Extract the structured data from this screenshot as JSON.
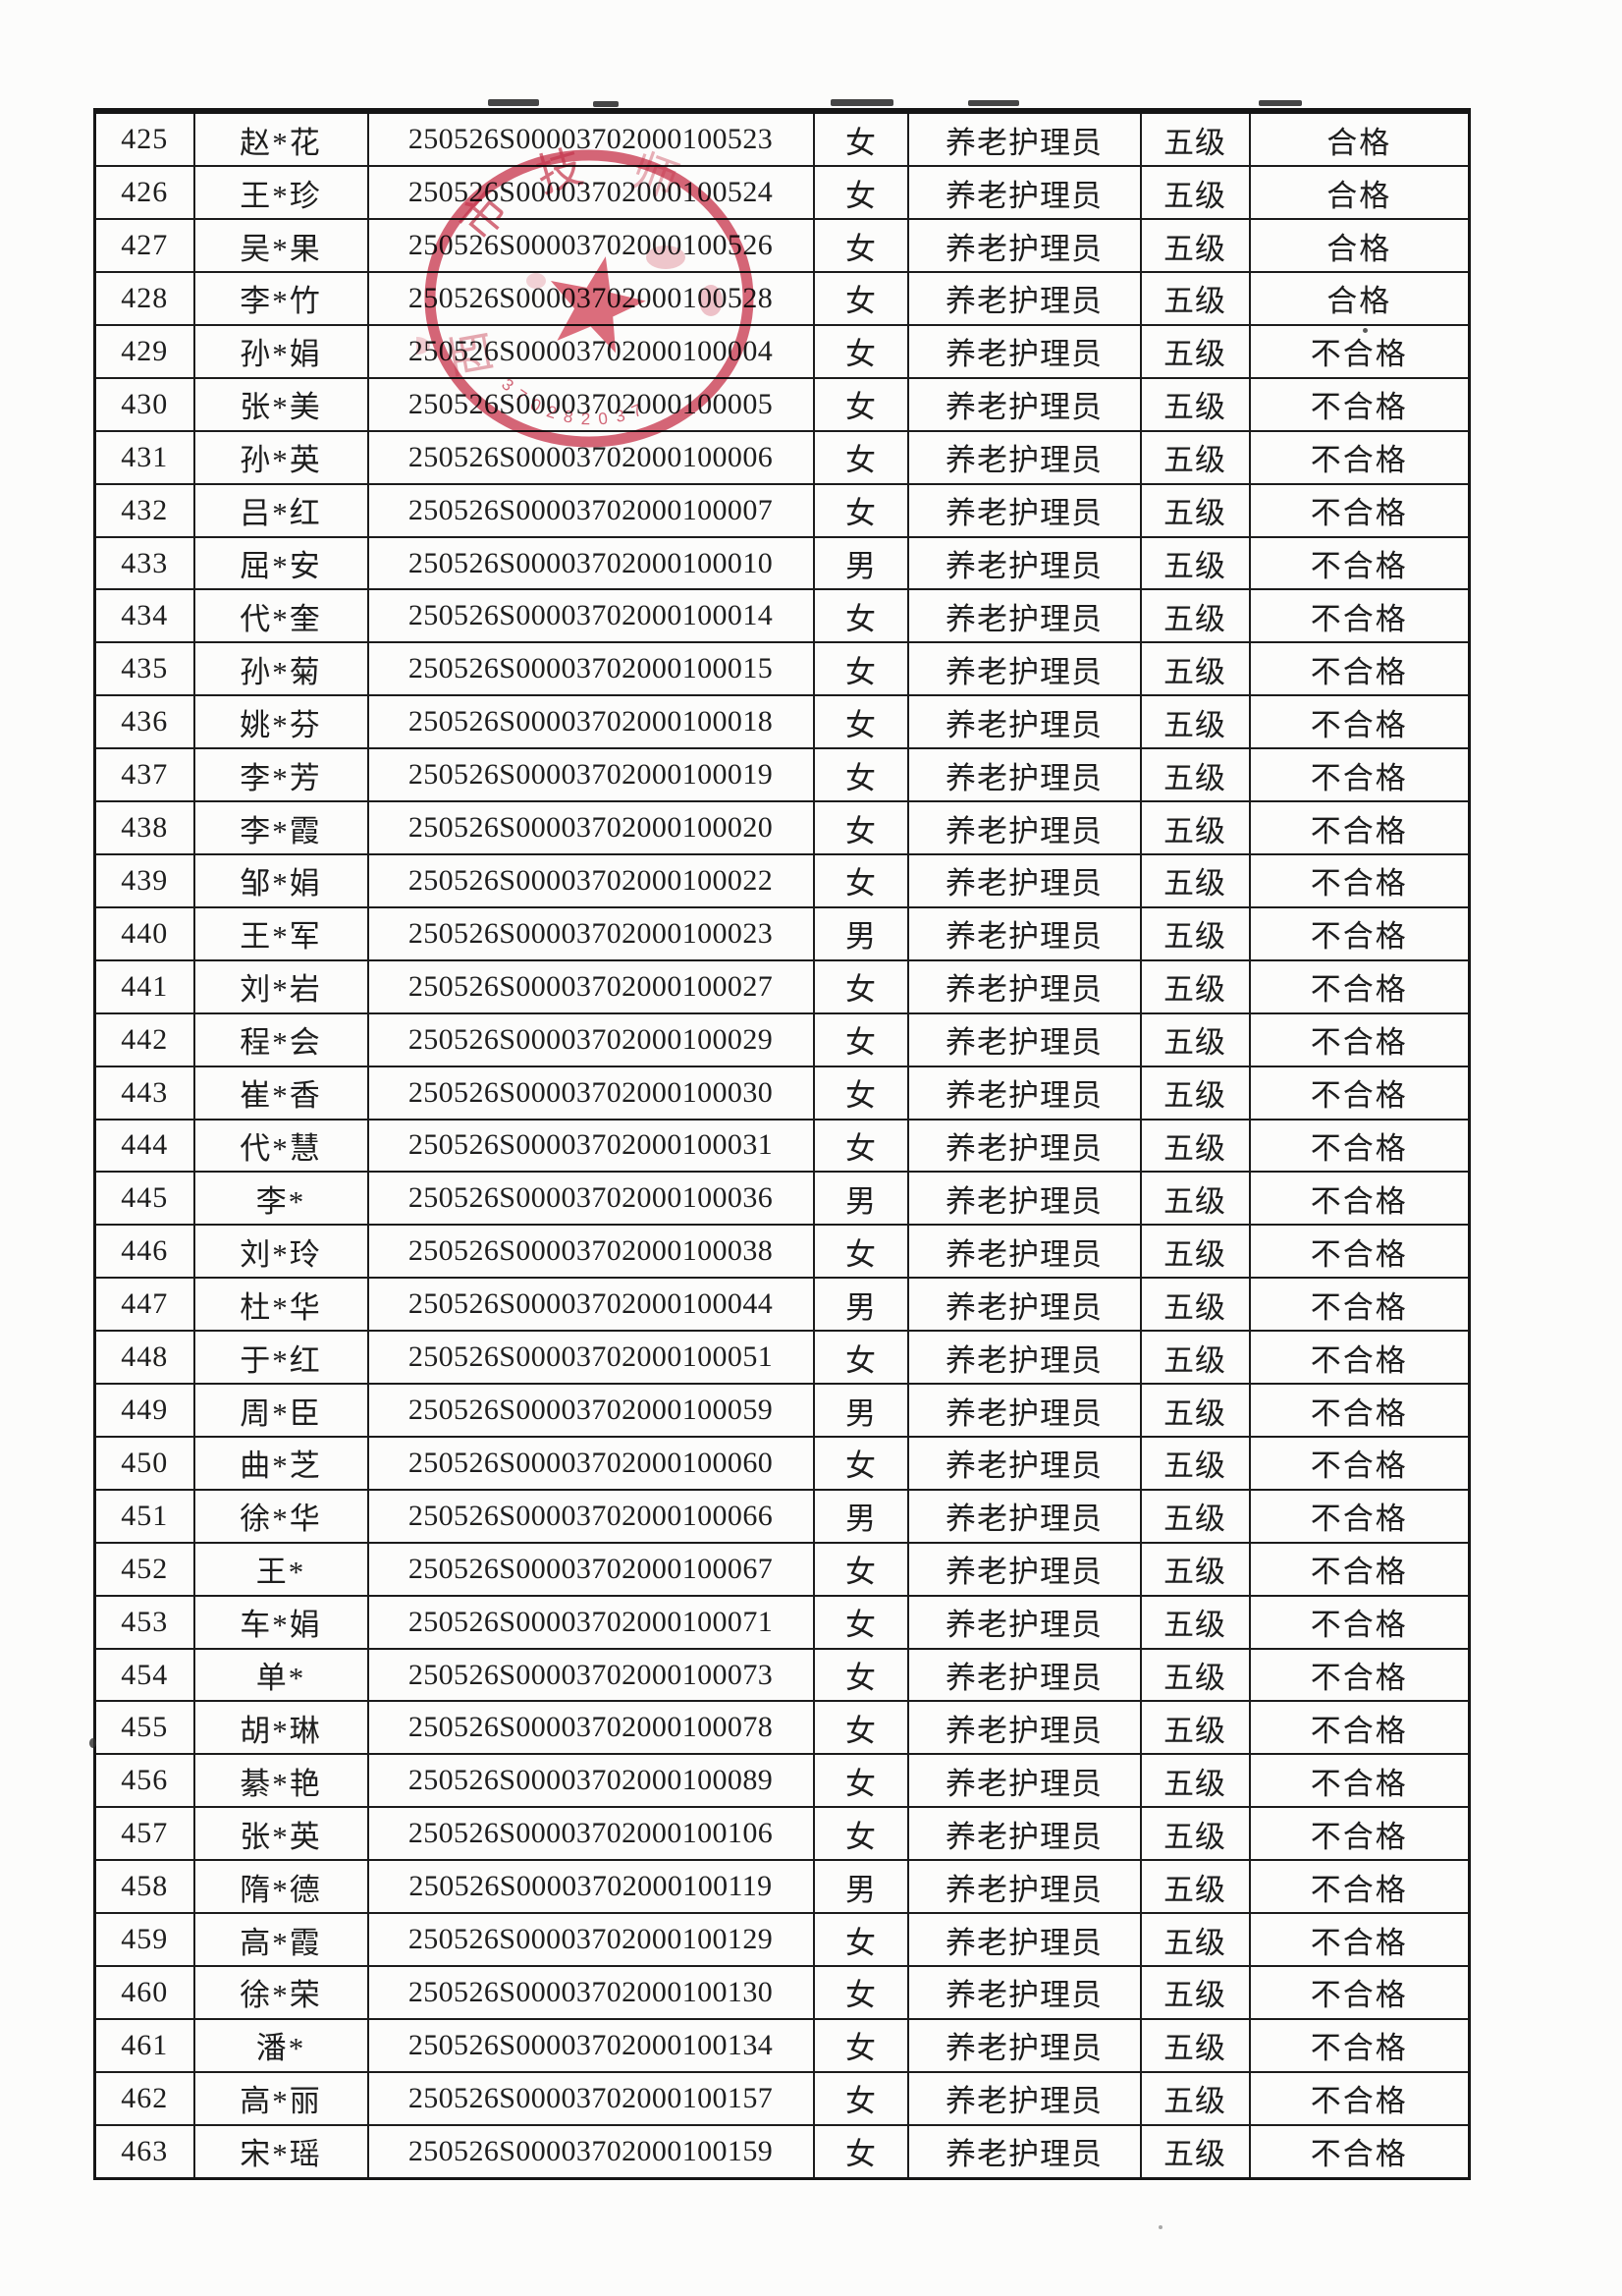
{
  "colors": {
    "ink": "#1e1e1e",
    "table_border": "#1c1c1c",
    "seal_red": "#c83b52",
    "paper": "#fcfcfb"
  },
  "stamp": {
    "kind": "official-red-circular-seal",
    "arc_chars": [
      "市",
      "技",
      "师",
      "西"
    ],
    "serial_digits": "370282037",
    "center_symbol": "five-pointed-star"
  },
  "table": {
    "rows": [
      {
        "no": "425",
        "name": "赵*花",
        "id": "250526S00003702000100523",
        "gender": "女",
        "occupation": "养老护理员",
        "level": "五级",
        "result": "合格"
      },
      {
        "no": "426",
        "name": "王*珍",
        "id": "250526S00003702000100524",
        "gender": "女",
        "occupation": "养老护理员",
        "level": "五级",
        "result": "合格"
      },
      {
        "no": "427",
        "name": "吴*果",
        "id": "250526S00003702000100526",
        "gender": "女",
        "occupation": "养老护理员",
        "level": "五级",
        "result": "合格"
      },
      {
        "no": "428",
        "name": "李*竹",
        "id": "250526S00003702000100528",
        "gender": "女",
        "occupation": "养老护理员",
        "level": "五级",
        "result": "合格"
      },
      {
        "no": "429",
        "name": "孙*娟",
        "id": "250526S00003702000100004",
        "gender": "女",
        "occupation": "养老护理员",
        "level": "五级",
        "result": "不合格"
      },
      {
        "no": "430",
        "name": "张*美",
        "id": "250526S00003702000100005",
        "gender": "女",
        "occupation": "养老护理员",
        "level": "五级",
        "result": "不合格"
      },
      {
        "no": "431",
        "name": "孙*英",
        "id": "250526S00003702000100006",
        "gender": "女",
        "occupation": "养老护理员",
        "level": "五级",
        "result": "不合格"
      },
      {
        "no": "432",
        "name": "吕*红",
        "id": "250526S00003702000100007",
        "gender": "女",
        "occupation": "养老护理员",
        "level": "五级",
        "result": "不合格"
      },
      {
        "no": "433",
        "name": "屈*安",
        "id": "250526S00003702000100010",
        "gender": "男",
        "occupation": "养老护理员",
        "level": "五级",
        "result": "不合格"
      },
      {
        "no": "434",
        "name": "代*奎",
        "id": "250526S00003702000100014",
        "gender": "女",
        "occupation": "养老护理员",
        "level": "五级",
        "result": "不合格"
      },
      {
        "no": "435",
        "name": "孙*菊",
        "id": "250526S00003702000100015",
        "gender": "女",
        "occupation": "养老护理员",
        "level": "五级",
        "result": "不合格"
      },
      {
        "no": "436",
        "name": "姚*芬",
        "id": "250526S00003702000100018",
        "gender": "女",
        "occupation": "养老护理员",
        "level": "五级",
        "result": "不合格"
      },
      {
        "no": "437",
        "name": "李*芳",
        "id": "250526S00003702000100019",
        "gender": "女",
        "occupation": "养老护理员",
        "level": "五级",
        "result": "不合格"
      },
      {
        "no": "438",
        "name": "李*霞",
        "id": "250526S00003702000100020",
        "gender": "女",
        "occupation": "养老护理员",
        "level": "五级",
        "result": "不合格"
      },
      {
        "no": "439",
        "name": "邹*娟",
        "id": "250526S00003702000100022",
        "gender": "女",
        "occupation": "养老护理员",
        "level": "五级",
        "result": "不合格"
      },
      {
        "no": "440",
        "name": "王*军",
        "id": "250526S00003702000100023",
        "gender": "男",
        "occupation": "养老护理员",
        "level": "五级",
        "result": "不合格"
      },
      {
        "no": "441",
        "name": "刘*岩",
        "id": "250526S00003702000100027",
        "gender": "女",
        "occupation": "养老护理员",
        "level": "五级",
        "result": "不合格"
      },
      {
        "no": "442",
        "name": "程*会",
        "id": "250526S00003702000100029",
        "gender": "女",
        "occupation": "养老护理员",
        "level": "五级",
        "result": "不合格"
      },
      {
        "no": "443",
        "name": "崔*香",
        "id": "250526S00003702000100030",
        "gender": "女",
        "occupation": "养老护理员",
        "level": "五级",
        "result": "不合格"
      },
      {
        "no": "444",
        "name": "代*慧",
        "id": "250526S00003702000100031",
        "gender": "女",
        "occupation": "养老护理员",
        "level": "五级",
        "result": "不合格"
      },
      {
        "no": "445",
        "name": "李*",
        "id": "250526S00003702000100036",
        "gender": "男",
        "occupation": "养老护理员",
        "level": "五级",
        "result": "不合格"
      },
      {
        "no": "446",
        "name": "刘*玲",
        "id": "250526S00003702000100038",
        "gender": "女",
        "occupation": "养老护理员",
        "level": "五级",
        "result": "不合格"
      },
      {
        "no": "447",
        "name": "杜*华",
        "id": "250526S00003702000100044",
        "gender": "男",
        "occupation": "养老护理员",
        "level": "五级",
        "result": "不合格"
      },
      {
        "no": "448",
        "name": "于*红",
        "id": "250526S00003702000100051",
        "gender": "女",
        "occupation": "养老护理员",
        "level": "五级",
        "result": "不合格"
      },
      {
        "no": "449",
        "name": "周*臣",
        "id": "250526S00003702000100059",
        "gender": "男",
        "occupation": "养老护理员",
        "level": "五级",
        "result": "不合格"
      },
      {
        "no": "450",
        "name": "曲*芝",
        "id": "250526S00003702000100060",
        "gender": "女",
        "occupation": "养老护理员",
        "level": "五级",
        "result": "不合格"
      },
      {
        "no": "451",
        "name": "徐*华",
        "id": "250526S00003702000100066",
        "gender": "男",
        "occupation": "养老护理员",
        "level": "五级",
        "result": "不合格"
      },
      {
        "no": "452",
        "name": "王*",
        "id": "250526S00003702000100067",
        "gender": "女",
        "occupation": "养老护理员",
        "level": "五级",
        "result": "不合格"
      },
      {
        "no": "453",
        "name": "车*娟",
        "id": "250526S00003702000100071",
        "gender": "女",
        "occupation": "养老护理员",
        "level": "五级",
        "result": "不合格"
      },
      {
        "no": "454",
        "name": "单*",
        "id": "250526S00003702000100073",
        "gender": "女",
        "occupation": "养老护理员",
        "level": "五级",
        "result": "不合格"
      },
      {
        "no": "455",
        "name": "胡*琳",
        "id": "250526S00003702000100078",
        "gender": "女",
        "occupation": "养老护理员",
        "level": "五级",
        "result": "不合格"
      },
      {
        "no": "456",
        "name": "綦*艳",
        "id": "250526S00003702000100089",
        "gender": "女",
        "occupation": "养老护理员",
        "level": "五级",
        "result": "不合格"
      },
      {
        "no": "457",
        "name": "张*英",
        "id": "250526S00003702000100106",
        "gender": "女",
        "occupation": "养老护理员",
        "level": "五级",
        "result": "不合格"
      },
      {
        "no": "458",
        "name": "隋*德",
        "id": "250526S00003702000100119",
        "gender": "男",
        "occupation": "养老护理员",
        "level": "五级",
        "result": "不合格"
      },
      {
        "no": "459",
        "name": "高*霞",
        "id": "250526S00003702000100129",
        "gender": "女",
        "occupation": "养老护理员",
        "level": "五级",
        "result": "不合格"
      },
      {
        "no": "460",
        "name": "徐*荣",
        "id": "250526S00003702000100130",
        "gender": "女",
        "occupation": "养老护理员",
        "level": "五级",
        "result": "不合格"
      },
      {
        "no": "461",
        "name": "潘*",
        "id": "250526S00003702000100134",
        "gender": "女",
        "occupation": "养老护理员",
        "level": "五级",
        "result": "不合格"
      },
      {
        "no": "462",
        "name": "高*丽",
        "id": "250526S00003702000100157",
        "gender": "女",
        "occupation": "养老护理员",
        "level": "五级",
        "result": "不合格"
      },
      {
        "no": "463",
        "name": "宋*瑶",
        "id": "250526S00003702000100159",
        "gender": "女",
        "occupation": "养老护理员",
        "level": "五级",
        "result": "不合格"
      }
    ]
  }
}
